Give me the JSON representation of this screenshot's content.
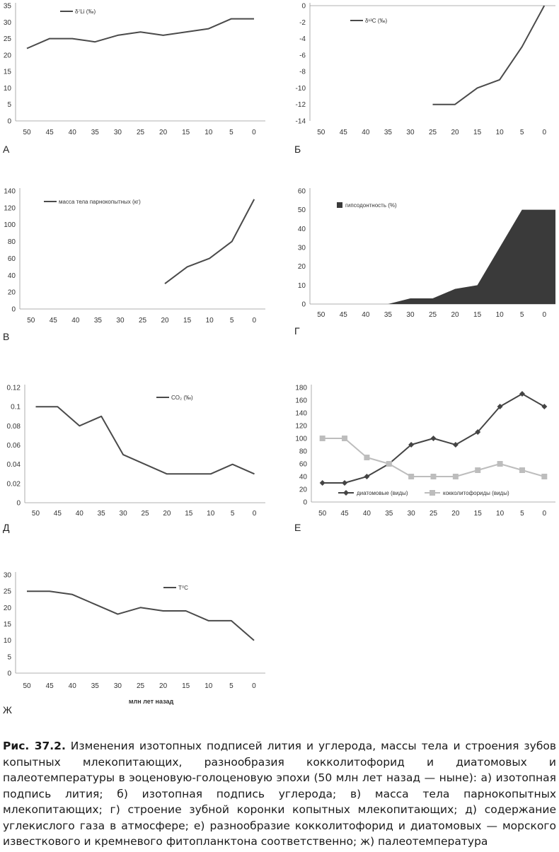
{
  "chart_data": [
    {
      "id": "A",
      "type": "line",
      "panel_letter": "А",
      "x": [
        "50",
        "45",
        "40",
        "35",
        "30",
        "25",
        "20",
        "15",
        "10",
        "5",
        "0"
      ],
      "series": [
        {
          "name": "δ⁷Li (‰)",
          "values": [
            22,
            25,
            25,
            24,
            26,
            27,
            26,
            27,
            28,
            31,
            31
          ]
        }
      ],
      "yticks": [
        "35",
        "30",
        "25",
        "20",
        "15",
        "10",
        "5",
        "0"
      ],
      "ylim": [
        0,
        35
      ],
      "colors": [
        "#4a4a4a"
      ]
    },
    {
      "id": "B",
      "type": "line",
      "panel_letter": "Б",
      "x": [
        "50",
        "45",
        "40",
        "35",
        "30",
        "25",
        "20",
        "15",
        "10",
        "5",
        "0"
      ],
      "series": [
        {
          "name": "δ¹³C (‰)",
          "values": [
            null,
            null,
            null,
            null,
            null,
            -12,
            -12,
            -10,
            -9,
            -5,
            0
          ]
        }
      ],
      "yticks": [
        "0",
        "-2",
        "-4",
        "-6",
        "-8",
        "-10",
        "-12",
        "-14"
      ],
      "ylim": [
        -14,
        0
      ],
      "colors": [
        "#4a4a4a"
      ]
    },
    {
      "id": "V",
      "type": "line",
      "panel_letter": "В",
      "x": [
        "50",
        "45",
        "40",
        "35",
        "30",
        "25",
        "20",
        "15",
        "10",
        "5",
        "0"
      ],
      "series": [
        {
          "name": "масса тела парнокопытных (кг)",
          "values": [
            null,
            null,
            null,
            null,
            null,
            null,
            30,
            50,
            60,
            80,
            130
          ]
        }
      ],
      "yticks": [
        "140",
        "120",
        "100",
        "80",
        "60",
        "40",
        "20",
        "0"
      ],
      "ylim": [
        0,
        140
      ],
      "colors": [
        "#4a4a4a"
      ]
    },
    {
      "id": "G",
      "type": "area",
      "panel_letter": "Г",
      "x": [
        "50",
        "45",
        "40",
        "35",
        "30",
        "25",
        "20",
        "15",
        "10",
        "5",
        "0"
      ],
      "series": [
        {
          "name": "гипсодонтность (%)",
          "values": [
            0,
            0,
            0,
            0,
            3,
            3,
            8,
            10,
            30,
            50,
            50
          ]
        }
      ],
      "yticks": [
        "60",
        "50",
        "40",
        "30",
        "20",
        "10",
        "0"
      ],
      "ylim": [
        0,
        60
      ],
      "colors": [
        "#3a3a3a"
      ]
    },
    {
      "id": "D",
      "type": "line",
      "panel_letter": "Д",
      "x": [
        "50",
        "45",
        "40",
        "35",
        "30",
        "25",
        "20",
        "15",
        "10",
        "5",
        "0"
      ],
      "series": [
        {
          "name": "CO₂ (‰)",
          "values": [
            0.1,
            0.1,
            0.08,
            0.09,
            0.05,
            0.04,
            0.03,
            0.03,
            0.03,
            0.04,
            0.03
          ]
        }
      ],
      "yticks": [
        "0.12",
        "0.1",
        "0.08",
        "0.06",
        "0.04",
        "0.02",
        "0"
      ],
      "ylim": [
        0,
        0.12
      ],
      "colors": [
        "#4a4a4a"
      ]
    },
    {
      "id": "E",
      "type": "line",
      "panel_letter": "Е",
      "x": [
        "50",
        "45",
        "40",
        "35",
        "30",
        "25",
        "20",
        "15",
        "10",
        "5",
        "0"
      ],
      "series": [
        {
          "name": "диатомовые (виды)",
          "values": [
            30,
            30,
            40,
            60,
            90,
            100,
            90,
            110,
            150,
            170,
            150
          ]
        },
        {
          "name": "кокколитофориды (виды)",
          "values": [
            100,
            100,
            70,
            60,
            40,
            40,
            40,
            50,
            60,
            50,
            40
          ]
        }
      ],
      "yticks": [
        "180",
        "160",
        "140",
        "120",
        "100",
        "80",
        "60",
        "40",
        "20",
        "0"
      ],
      "ylim": [
        0,
        180
      ],
      "colors": [
        "#444444",
        "#bdbdbd"
      ]
    },
    {
      "id": "Zh",
      "type": "line",
      "panel_letter": "Ж",
      "x": [
        "50",
        "45",
        "40",
        "35",
        "30",
        "25",
        "20",
        "15",
        "10",
        "5",
        "0"
      ],
      "series": [
        {
          "name": "T⁰C",
          "values": [
            25,
            25,
            24,
            21,
            18,
            20,
            19,
            19,
            16,
            16,
            10
          ]
        }
      ],
      "yticks": [
        "30",
        "25",
        "20",
        "15",
        "10",
        "5",
        "0"
      ],
      "ylim": [
        0,
        30
      ],
      "xlabel": "млн лет назад",
      "colors": [
        "#4a4a4a"
      ]
    }
  ],
  "caption": {
    "label": "Рис. 37.2.",
    "text": " Изменения изотопных подписей лития и углерода, массы тела и строения зубов копытных млекопитающих, разнообразия кокколитофорид и диатомовых и палеотемпературы в эоценовую-голоценовую эпохи (50 млн лет назад — ныне): а) изотопная подпись лития; б) изотопная подпись углерода; в) масса тела парнокопытных млекопитающих; г) строение зубной коронки копытных млекопитающих; д) содержание углекислого газа в атмосфере; е) разнообразие кокколитофорид и диатомовых — морского известкового и кремневого фитопланктона соответственно; ж) палеотемпература"
  }
}
